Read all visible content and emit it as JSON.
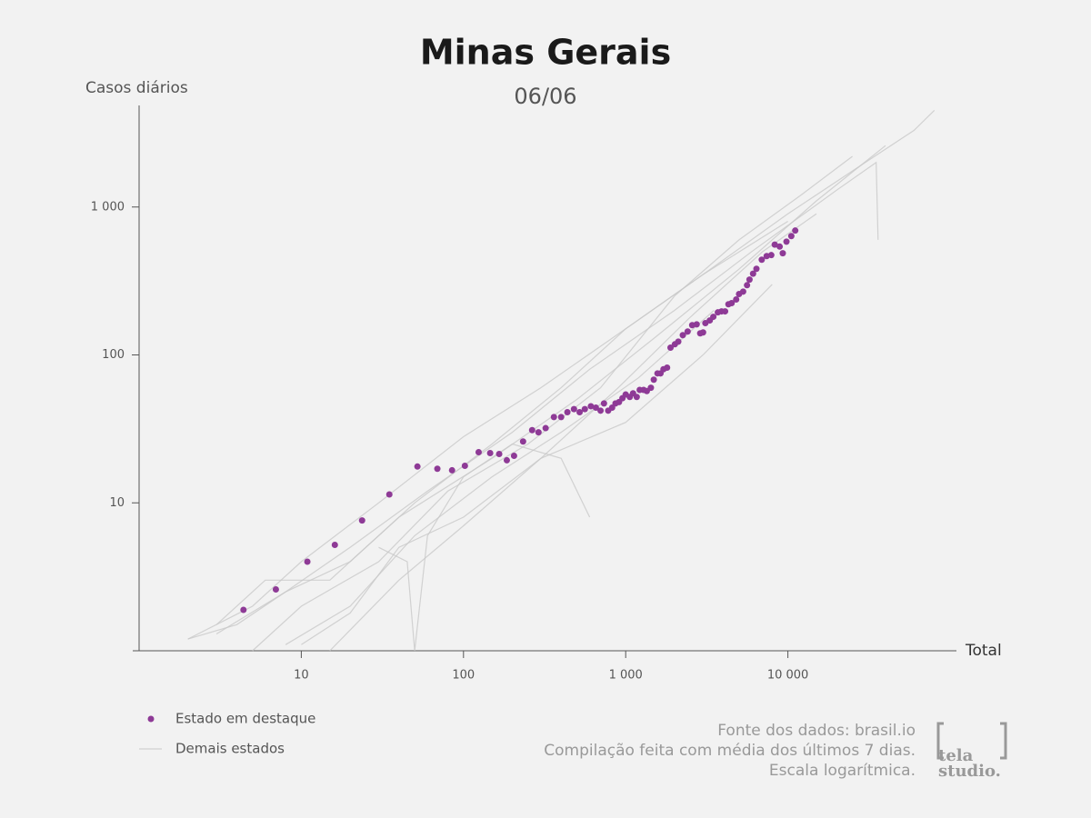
{
  "chart_data": {
    "type": "scatter",
    "title": "Minas Gerais",
    "subtitle": "06/06",
    "y_label": "Casos diários",
    "x_label": "Total",
    "x_log": true,
    "y_log": true,
    "xlim": [
      1,
      100000
    ],
    "ylim": [
      1,
      5000
    ],
    "xticks": [
      10,
      100,
      {
        "value": 1000,
        "label": "1 000"
      },
      {
        "value": 10000,
        "label": "10 000"
      }
    ],
    "yticks": [
      10,
      100,
      {
        "value": 1000,
        "label": "1 000"
      }
    ],
    "series": [
      {
        "name": "Estado em destaque",
        "color": "#8e3a96",
        "style": "points",
        "x": [
          4.4,
          6.97,
          10.9,
          16.1,
          23.7,
          34.9,
          52,
          69,
          85,
          102,
          124,
          146,
          166,
          185,
          205,
          233,
          265,
          290,
          321,
          361,
          400,
          437,
          480,
          520,
          560,
          610,
          655,
          700,
          735,
          780,
          825,
          865,
          910,
          955,
          1000,
          1060,
          1110,
          1170,
          1220,
          1290,
          1350,
          1430,
          1490,
          1570,
          1640,
          1710,
          1800,
          1890,
          2010,
          2110,
          2250,
          2410,
          2570,
          2740,
          2880,
          3000,
          3100,
          3300,
          3470,
          3700,
          3900,
          4100,
          4300,
          4500,
          4800,
          5000,
          5300,
          5600,
          5800,
          6100,
          6400,
          6900,
          7400,
          7900,
          8300,
          8900,
          9300,
          9800,
          10500,
          11100
        ],
        "values": [
          1.89,
          2.6,
          4.0,
          5.2,
          7.6,
          11.4,
          17.6,
          17,
          16.6,
          17.8,
          22,
          21.7,
          21.4,
          19.4,
          20.8,
          26,
          31,
          30,
          32,
          38,
          38,
          41,
          43,
          41,
          43,
          45,
          44,
          42,
          47,
          42,
          44,
          47,
          48,
          51,
          54,
          52,
          55,
          52,
          58,
          58,
          57,
          60,
          68,
          75,
          75,
          80,
          82,
          112,
          118,
          123,
          136,
          144,
          159,
          161,
          140,
          142,
          164,
          171,
          181,
          194,
          197,
          197,
          220,
          224,
          237,
          258,
          268,
          296,
          323,
          354,
          382,
          440,
          466,
          473,
          557,
          540,
          487,
          583,
          636,
          693
        ]
      },
      {
        "name": "Demais estados",
        "color": "#c8c8c8",
        "style": "lines",
        "lines": [
          {
            "x": [
              2,
              5,
              10,
              30,
              100,
              300,
              1000,
              3000,
              10000,
              30000,
              60000,
              80000
            ],
            "values": [
              1.2,
              2,
              4,
              10,
              28,
              60,
              150,
              350,
              900,
              2000,
              3300,
              4500
            ]
          },
          {
            "x": [
              3,
              8,
              20,
              60,
              200,
              600,
              2000,
              6000,
              20000,
              35000,
              36000
            ],
            "values": [
              1.3,
              2.5,
              5,
              12,
              30,
              80,
              200,
              500,
              1300,
              2000,
              600
            ]
          },
          {
            "x": [
              3,
              6,
              15,
              40,
              150,
              500,
              1500,
              5000,
              15000,
              40000
            ],
            "values": [
              1.5,
              3,
              3,
              8,
              20,
              50,
              130,
              380,
              1100,
              2600
            ]
          },
          {
            "x": [
              5,
              10,
              30,
              80,
              250,
              700,
              2000,
              5000,
              12000,
              25000
            ],
            "values": [
              1,
              2,
              4,
              12,
              25,
              60,
              250,
              600,
              1200,
              2200
            ]
          },
          {
            "x": [
              10,
              20,
              40,
              100,
              300,
              1000,
              3000,
              8000
            ],
            "values": [
              1.1,
              1.8,
              5,
              8,
              20,
              35,
              100,
              300
            ]
          },
          {
            "x": [
              8,
              20,
              50,
              150,
              400,
              1200,
              3500
            ],
            "values": [
              1.1,
              2,
              6,
              15,
              30,
              70,
              200
            ]
          },
          {
            "x": [
              15,
              40,
              100,
              300,
              900,
              2500,
              7000,
              15000
            ],
            "values": [
              1,
              3,
              7,
              20,
              60,
              180,
              500,
              900
            ]
          },
          {
            "x": [
              2,
              4,
              8,
              20,
              50,
              150,
              400,
              1000,
              3000,
              10000
            ],
            "values": [
              1.2,
              1.5,
              2.5,
              4,
              10,
              25,
              60,
              150,
              350,
              800
            ]
          },
          {
            "x": [
              30,
              45,
              50,
              60,
              100,
              200,
              400,
              600
            ],
            "values": [
              5,
              4,
              1,
              6,
              15,
              25,
              20,
              8
            ]
          }
        ]
      }
    ],
    "notes": [
      "Fonte dos dados: brasil.io",
      "Compilação feita com média dos últimos 7 dias.",
      "Escala logarítmica."
    ],
    "logo": [
      "tela",
      "studio."
    ]
  }
}
